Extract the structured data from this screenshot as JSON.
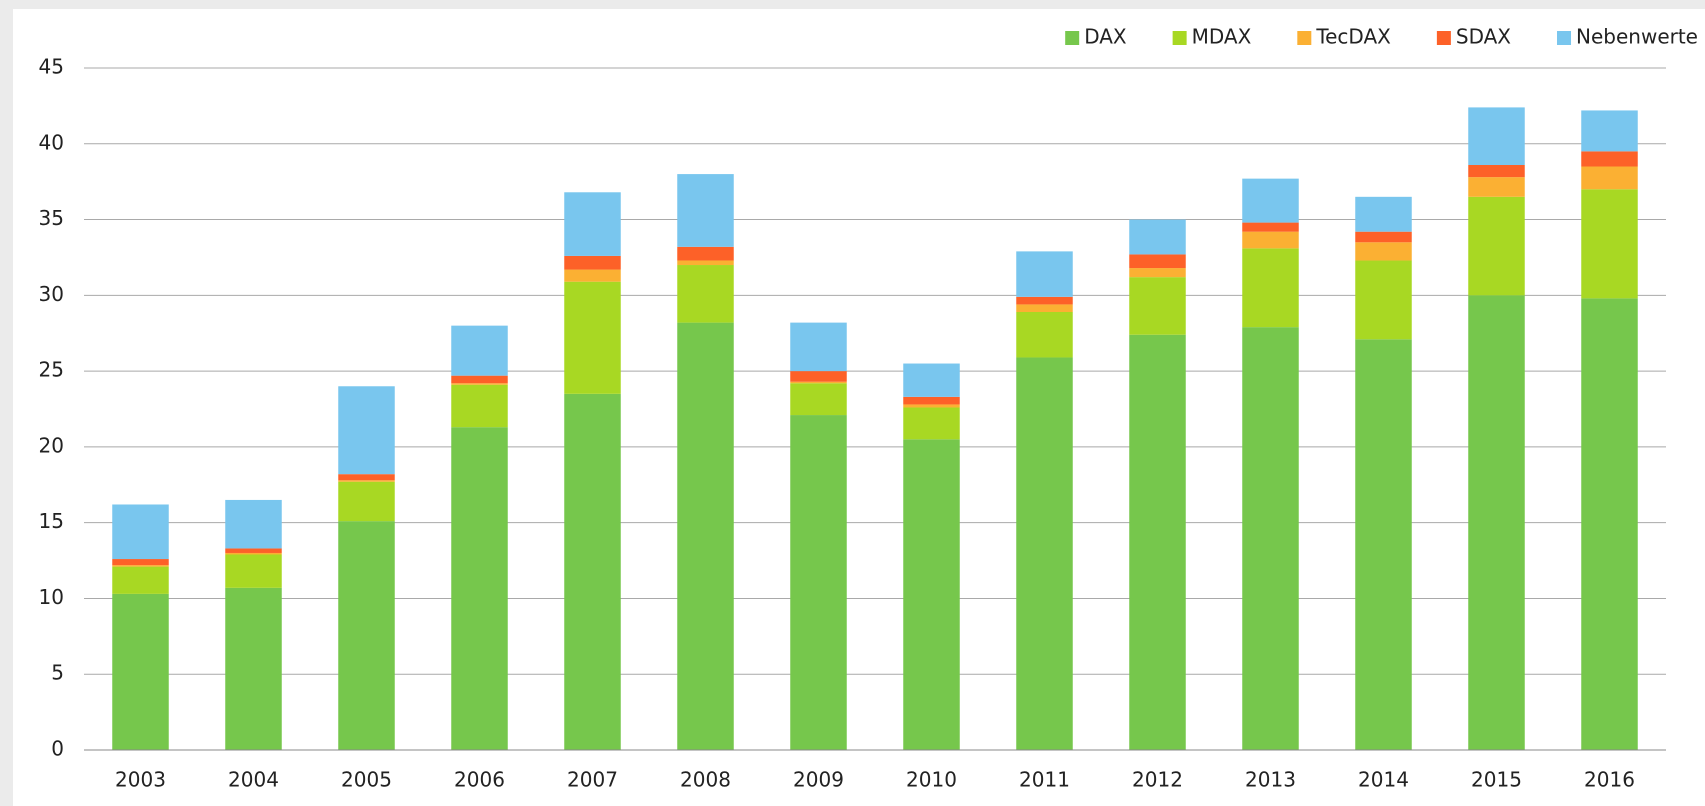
{
  "chart_data": {
    "type": "stacked_bar",
    "categories": [
      "2003",
      "2004",
      "2005",
      "2006",
      "2007",
      "2008",
      "2009",
      "2010",
      "2011",
      "2012",
      "2013",
      "2014",
      "2015",
      "2016"
    ],
    "series": [
      {
        "name": "DAX",
        "color": "#76c74c",
        "values": [
          10.3,
          10.7,
          15.1,
          21.3,
          23.5,
          28.2,
          22.1,
          20.5,
          25.9,
          27.4,
          27.9,
          27.1,
          30.0,
          29.8
        ]
      },
      {
        "name": "MDAX",
        "color": "#a8d823",
        "values": [
          1.8,
          2.2,
          2.6,
          2.8,
          7.4,
          3.8,
          2.1,
          2.1,
          3.0,
          3.8,
          5.2,
          5.2,
          6.5,
          7.2
        ]
      },
      {
        "name": "TecDAX",
        "color": "#fbb033",
        "values": [
          0.1,
          0.1,
          0.1,
          0.1,
          0.8,
          0.3,
          0.1,
          0.2,
          0.5,
          0.6,
          1.1,
          1.2,
          1.3,
          1.5
        ]
      },
      {
        "name": "SDAX",
        "color": "#fd6128",
        "values": [
          0.4,
          0.3,
          0.4,
          0.5,
          0.9,
          0.9,
          0.7,
          0.5,
          0.5,
          0.9,
          0.6,
          0.7,
          0.8,
          1.0
        ]
      },
      {
        "name": "Nebenwerte",
        "color": "#79c6ee",
        "values": [
          3.6,
          3.2,
          5.8,
          3.3,
          4.2,
          4.8,
          3.2,
          2.2,
          3.0,
          2.3,
          2.9,
          2.3,
          3.8,
          2.7
        ]
      }
    ],
    "ylim": [
      0,
      45
    ],
    "yticks": [
      0,
      5,
      10,
      15,
      20,
      25,
      30,
      35,
      40,
      45
    ],
    "grid": true,
    "legend": "top-right"
  }
}
